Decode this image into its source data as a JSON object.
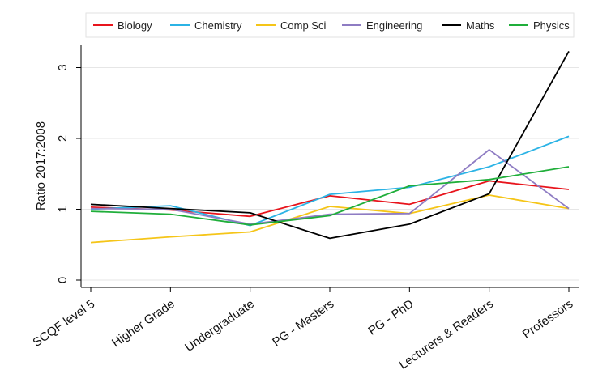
{
  "chart_data": {
    "type": "line",
    "categories": [
      "SCQF level 5",
      "Higher Grade",
      "Undergraduate",
      "PG - Masters",
      "PG - PhD",
      "Lecturers & Readers",
      "Professors"
    ],
    "ylabel": "Ratio 2017:2008",
    "ylim": [
      0,
      3.3
    ],
    "yticks": [
      0,
      1,
      2,
      3
    ],
    "grid": "horizontal",
    "legend_position": "top",
    "series": [
      {
        "name": "Biology",
        "color": "#e8141c",
        "values": [
          1.03,
          0.99,
          0.9,
          1.19,
          1.07,
          1.4,
          1.28
        ]
      },
      {
        "name": "Chemistry",
        "color": "#2bb3e5",
        "values": [
          1.0,
          1.05,
          0.77,
          1.21,
          1.31,
          1.6,
          2.03
        ]
      },
      {
        "name": "Comp Sci",
        "color": "#f5c518",
        "values": [
          0.53,
          0.61,
          0.68,
          1.04,
          0.94,
          1.2,
          1.01
        ]
      },
      {
        "name": "Engineering",
        "color": "#8e7cc3",
        "values": [
          1.01,
          1.0,
          0.79,
          0.93,
          0.94,
          1.84,
          1.01
        ]
      },
      {
        "name": "Maths",
        "color": "#000000",
        "values": [
          1.07,
          1.01,
          0.95,
          0.59,
          0.79,
          1.22,
          3.23
        ]
      },
      {
        "name": "Physics",
        "color": "#1fae3a",
        "values": [
          0.97,
          0.93,
          0.78,
          0.91,
          1.33,
          1.42,
          1.6
        ]
      }
    ]
  }
}
